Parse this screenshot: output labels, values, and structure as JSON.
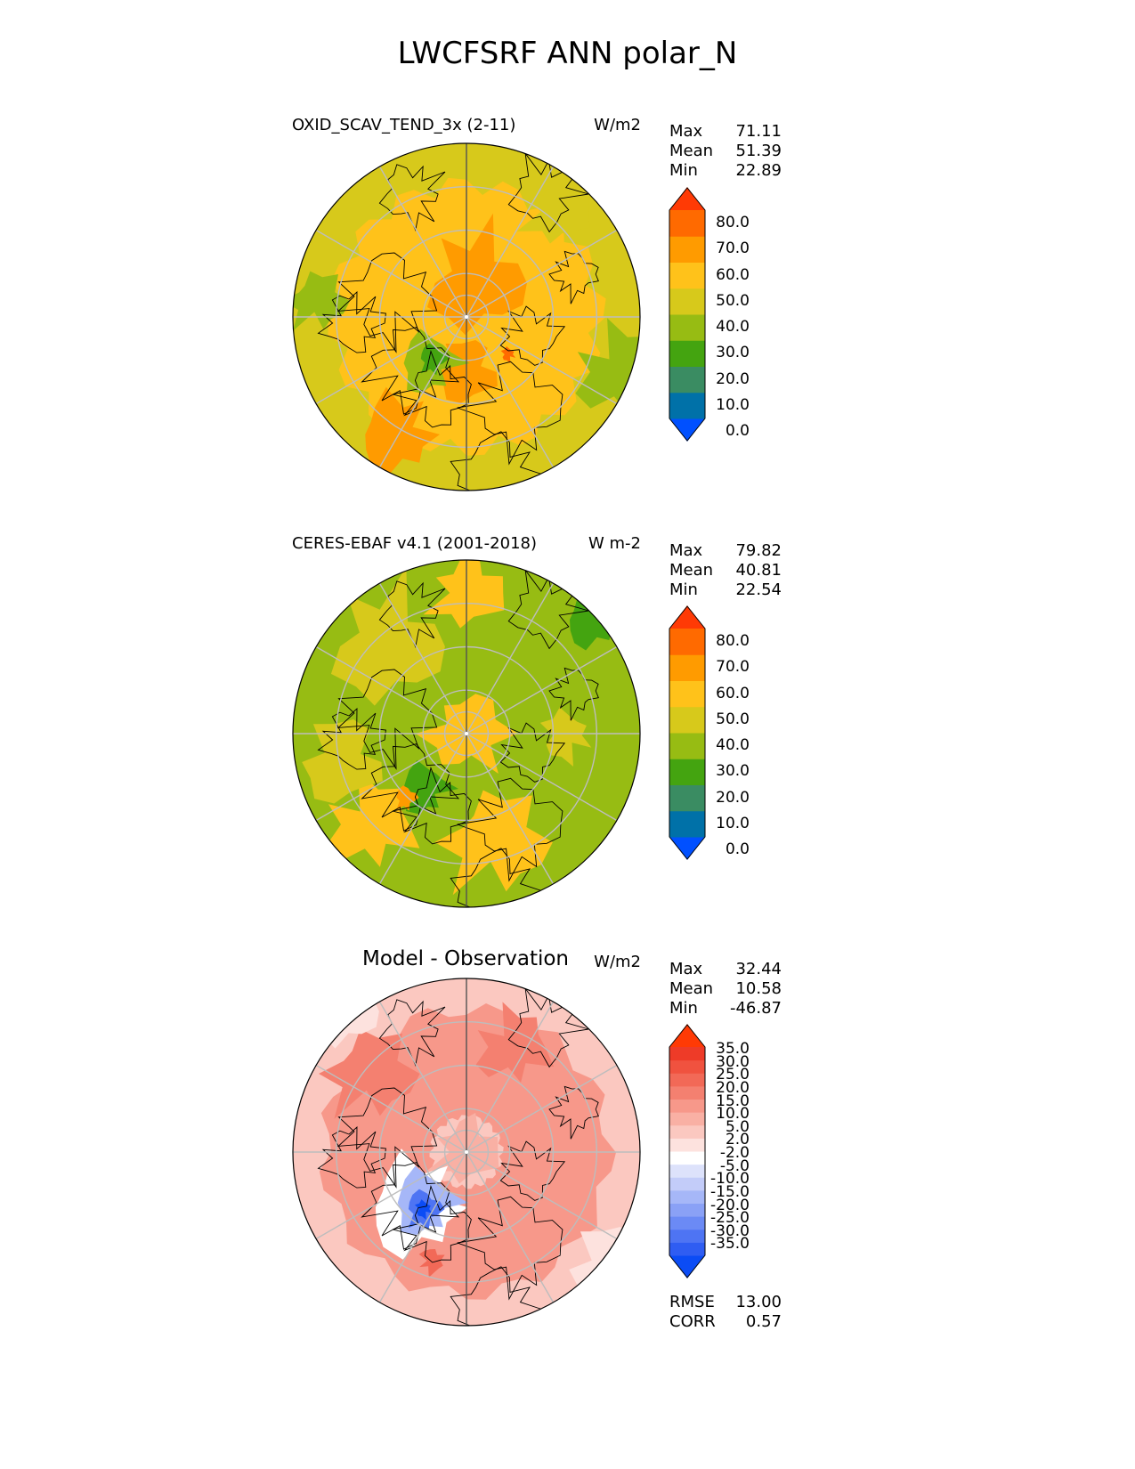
{
  "figure": {
    "title": "LWCFSRF ANN polar_N"
  },
  "colors": {
    "sequential_bins": [
      "#0050ff",
      "#0071a8",
      "#3a8c62",
      "#44a410",
      "#97bc13",
      "#d7c91b",
      "#ffc21a",
      "#ff9b00",
      "#ff6a00",
      "#ff3a05"
    ],
    "diverging_bins": [
      "#0b4cf5",
      "#2f5df2",
      "#4e74f3",
      "#6b8af5",
      "#8aa1f6",
      "#a6b7f8",
      "#c3ccf9",
      "#dde2fb",
      "#ffffff",
      "#fde2de",
      "#fbc8c0",
      "#f9b0a4",
      "#f7988a",
      "#f48070",
      "#f26957",
      "#f0523f",
      "#ee3b28",
      "#ff3a05"
    ],
    "land_outline": "#000000",
    "gridline": "#bdbdbd"
  },
  "panels": [
    {
      "title": "OXID_SCAV_TEND_3x (2-11)",
      "units": "W/m2",
      "stats": [
        {
          "label": "Max",
          "value": "71.11"
        },
        {
          "label": "Mean",
          "value": "51.39"
        },
        {
          "label": "Min",
          "value": "22.89"
        }
      ],
      "colorbar": [
        "80.0",
        "70.0",
        "60.0",
        "50.0",
        "40.0",
        "30.0",
        "20.0",
        "10.0",
        "0.0"
      ]
    },
    {
      "title": "CERES-EBAF v4.1 (2001-2018)",
      "units": "W m-2",
      "stats": [
        {
          "label": "Max",
          "value": "79.82"
        },
        {
          "label": "Mean",
          "value": "40.81"
        },
        {
          "label": "Min",
          "value": "22.54"
        }
      ],
      "colorbar": [
        "80.0",
        "70.0",
        "60.0",
        "50.0",
        "40.0",
        "30.0",
        "20.0",
        "10.0",
        "0.0"
      ]
    },
    {
      "title": "Model - Observation",
      "units": "W/m2",
      "stats": [
        {
          "label": "Max",
          "value": "32.44"
        },
        {
          "label": "Mean",
          "value": "10.58"
        },
        {
          "label": "Min",
          "value": "-46.87"
        }
      ],
      "colorbar": [
        "35.0",
        "30.0",
        "25.0",
        "20.0",
        "15.0",
        "10.0",
        "5.0",
        "2.0",
        "-2.0",
        "-5.0",
        "-10.0",
        "-15.0",
        "-20.0",
        "-25.0",
        "-30.0",
        "-35.0"
      ],
      "metrics": [
        {
          "label": "RMSE",
          "value": "13.00"
        },
        {
          "label": "CORR",
          "value": "0.57"
        }
      ]
    }
  ]
}
